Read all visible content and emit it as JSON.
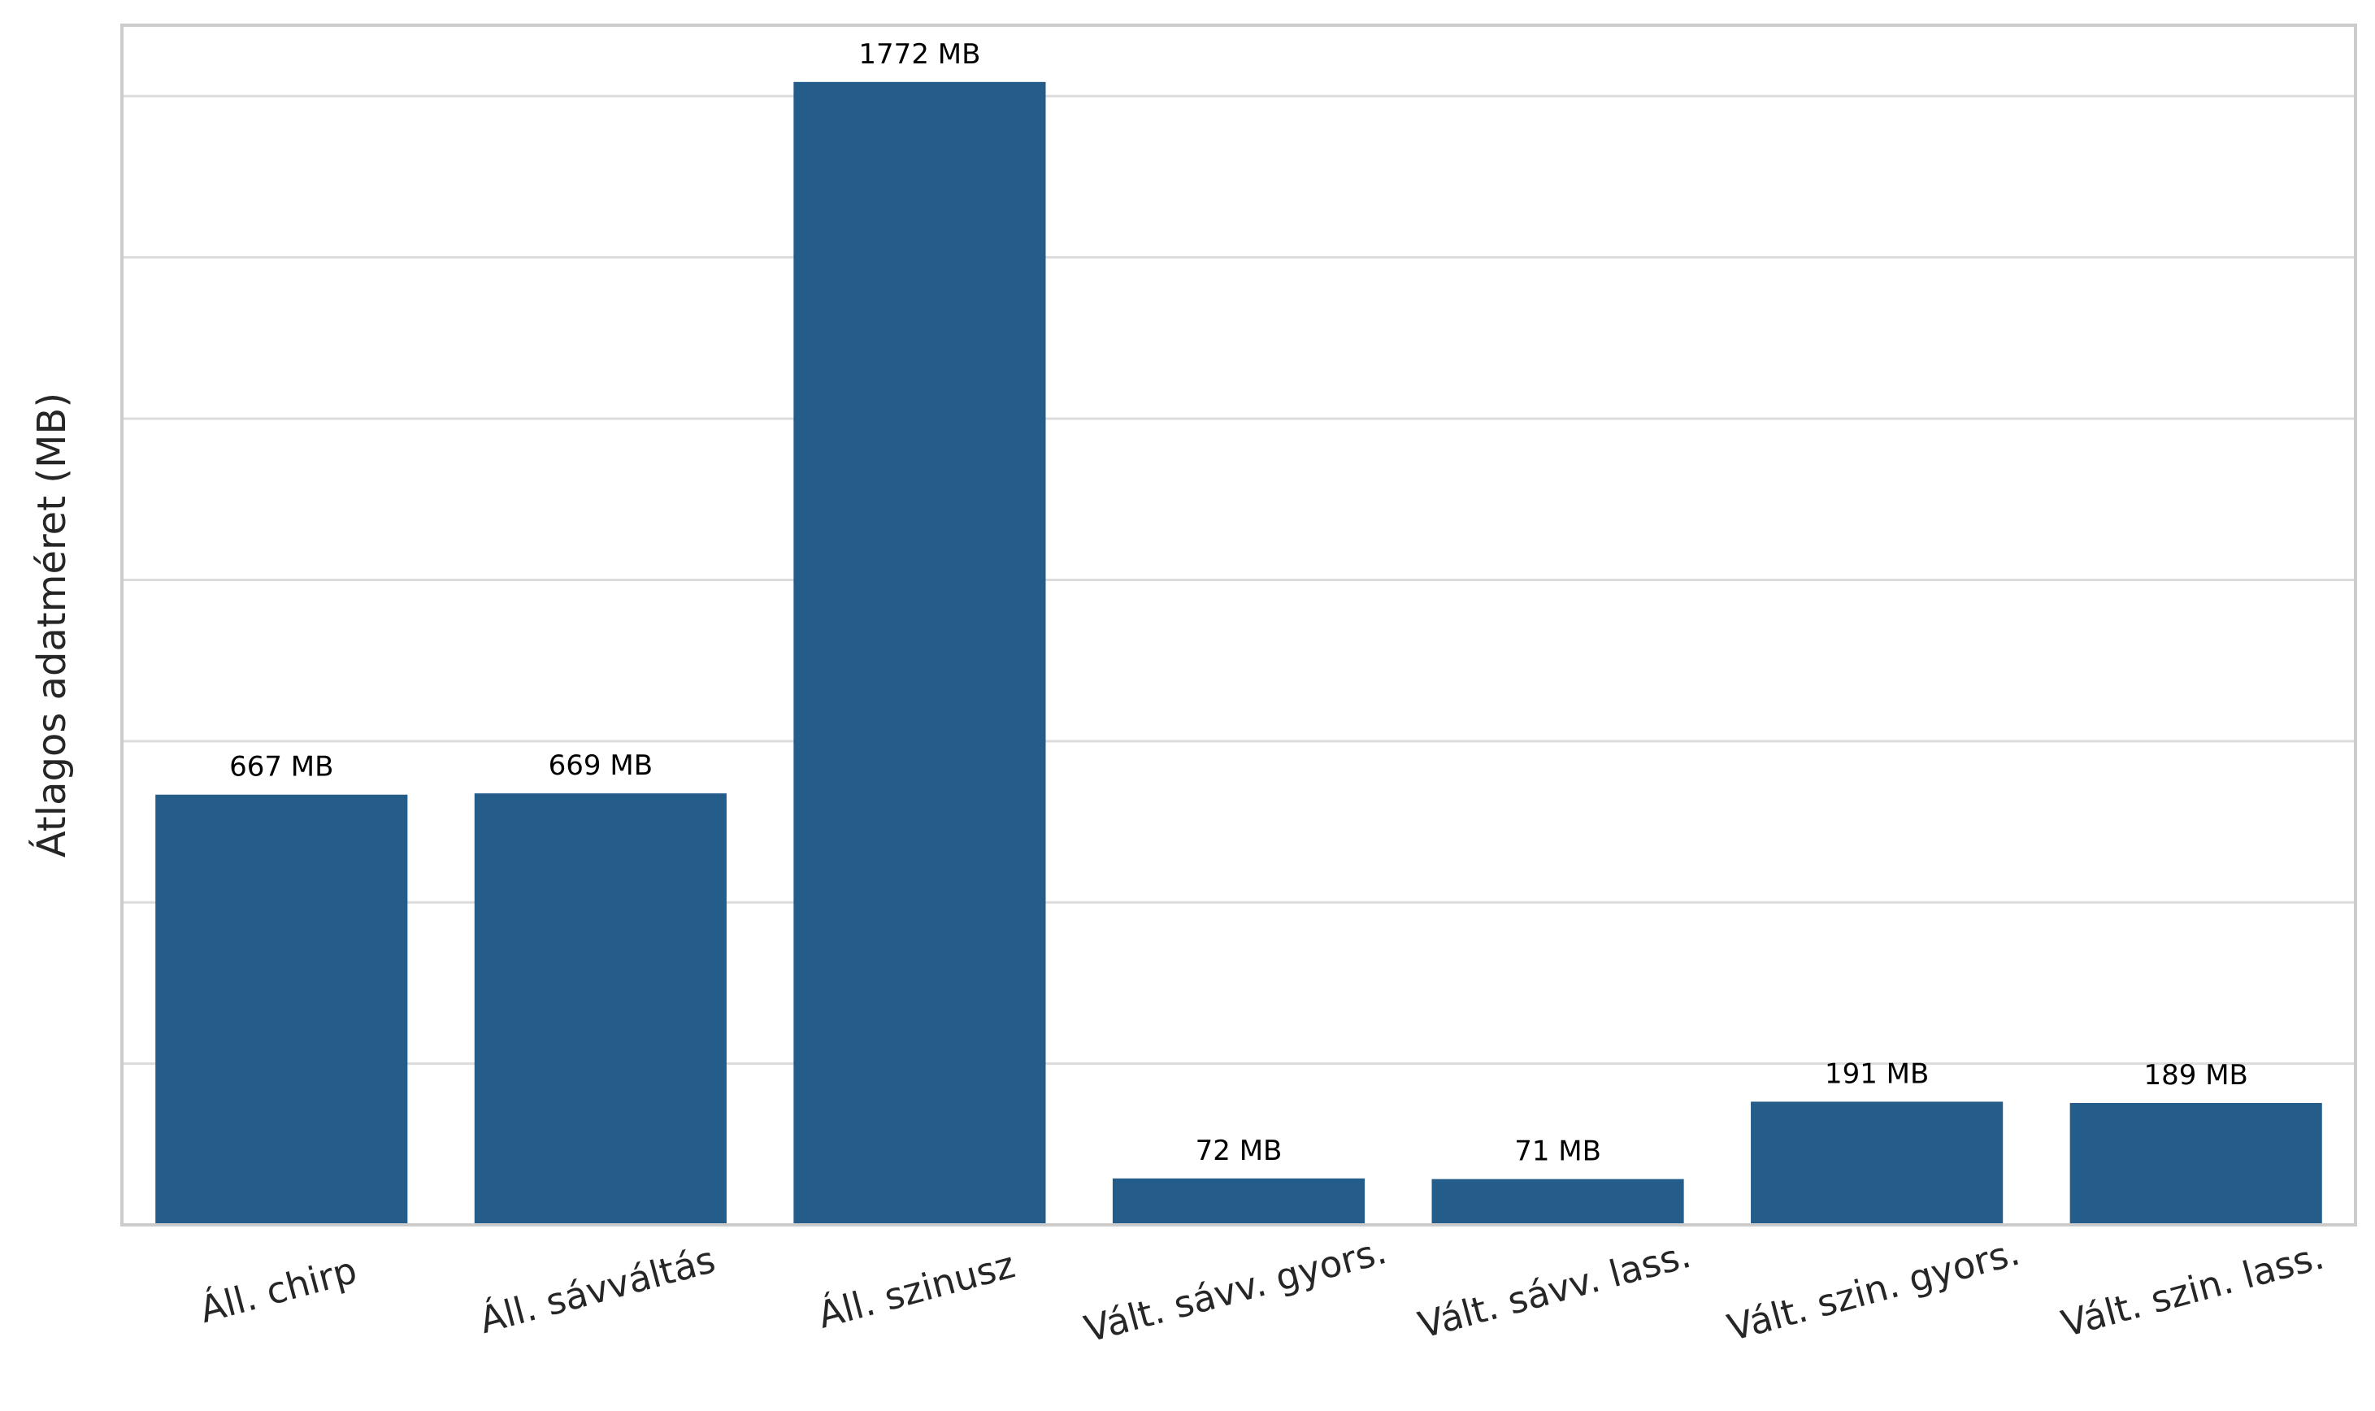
{
  "chart_data": {
    "type": "bar",
    "categories": [
      "Áll. chirp",
      "Áll. sávváltás",
      "Áll. szinusz",
      "Vált. sávv. gyors.",
      "Vált. sávv. lass.",
      "Vált. szin. gyors.",
      "Vált. szin. lass."
    ],
    "values": [
      667,
      669,
      1772,
      72,
      71,
      191,
      189
    ],
    "data_labels": [
      "667 MB",
      "669 MB",
      "1772 MB",
      "72 MB",
      "71 MB",
      "191 MB",
      "189 MB"
    ],
    "title": "",
    "xlabel": "",
    "ylabel": "Átlagos adatméret (MB)",
    "ylim": [
      0,
      1860
    ],
    "ytick_values": [
      250,
      500,
      750,
      1000,
      1250,
      1500,
      1750
    ],
    "ytick_labels_visible": false,
    "grid": "horizontal",
    "legend": "none",
    "bar_color": "#245c8a"
  }
}
